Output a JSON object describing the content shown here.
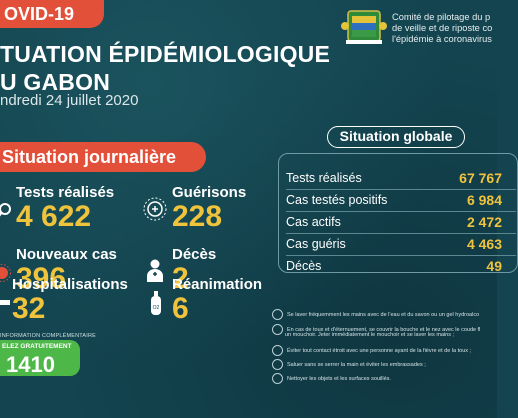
{
  "header": {
    "tag": "OVID-19",
    "title_line1": "TUATION ÉPIDÉMIOLOGIQUE",
    "title_line2": "U GABON",
    "date": "ndredi 24 juillet 2020"
  },
  "committee": {
    "line1": "Comité de pilotage du p",
    "line2": "de veille et de riposte co",
    "line3": "l'épidémie à coronavirus"
  },
  "daily": {
    "banner": "Situation journalière",
    "stats": [
      {
        "label": "Tests réalisés",
        "value": "4 622",
        "icon": "magnifier-icon"
      },
      {
        "label": "Guérisons",
        "value": "228",
        "icon": "virus-shield-icon"
      },
      {
        "label": "Nouveaux cas",
        "value": "396",
        "icon": "virus-icon"
      },
      {
        "label": "Décès",
        "value": "2",
        "icon": "person-icon"
      },
      {
        "label": "Hospitalisations",
        "value": "32",
        "icon": "bed-icon"
      },
      {
        "label": "Réanimation",
        "value": "6",
        "icon": "oxygen-tank-icon"
      }
    ]
  },
  "global": {
    "title": "Situation globale",
    "rows": [
      {
        "label": "Tests réalisés",
        "value": "67 767"
      },
      {
        "label": "Cas testés positifs",
        "value": "6 984"
      },
      {
        "label": "Cas actifs",
        "value": "2 472"
      },
      {
        "label": "Cas guéris",
        "value": "4 463"
      },
      {
        "label": "Décès",
        "value": "49"
      }
    ]
  },
  "hotline": {
    "info": "INFORMATION COMPLÉMENTAIRE",
    "free": "ELEZ GRATUITEMENT",
    "number": "1410"
  },
  "advice": [
    "Se laver fréquemment les mains avec de l'eau et du savon ou un gel hydroalco",
    "En cas de toux et d'éternuement, se couvrir la bouche et le nez avec le coude fl",
    "un mouchoir. Jeter immédiatement le mouchoir et se laver les mains ;",
    "Éviter tout contact étroit avec une personne ayant de la fièvre et de la toux ;",
    "Saluer sans se serrer la main et éviter les embrassades ;",
    "Nettoyer les objets et les surfaces souillés."
  ],
  "colors": {
    "accent": "#e2503a",
    "value": "#f0c33c",
    "background": "#13444f",
    "hotline": "#4db848"
  }
}
